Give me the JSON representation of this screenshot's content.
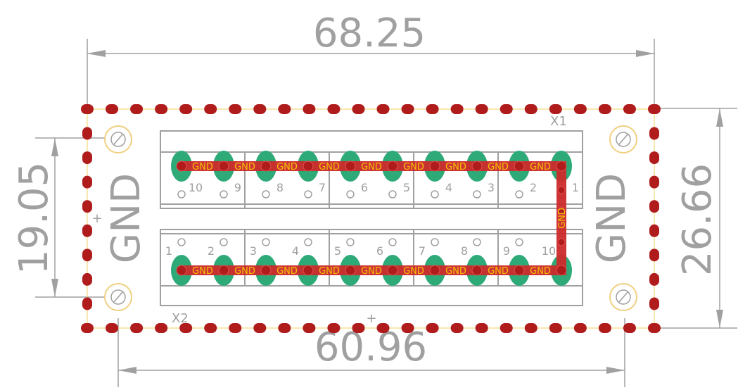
{
  "dimensions": {
    "top": "68.25",
    "bottom": "60.96",
    "left": "19.05",
    "right": "26.66"
  },
  "labels": {
    "gnd_left": "GND",
    "gnd_right": "GND",
    "x1": "X1",
    "x2": "X2",
    "net": "GND",
    "plus": "+"
  },
  "connector_x1": {
    "pins": [
      "10",
      "9",
      "8",
      "7",
      "6",
      "5",
      "4",
      "3",
      "2",
      "1"
    ]
  },
  "connector_x2": {
    "pins": [
      "1",
      "2",
      "3",
      "4",
      "5",
      "6",
      "7",
      "8",
      "9",
      "10"
    ]
  },
  "colors": {
    "via_dot": "#b01c1c",
    "trace": "#cc2a2a",
    "pad": "#2eaa78",
    "outline": "#a0a0a0",
    "net_label": "#f2c200",
    "hole_ring": "#f0d080"
  }
}
